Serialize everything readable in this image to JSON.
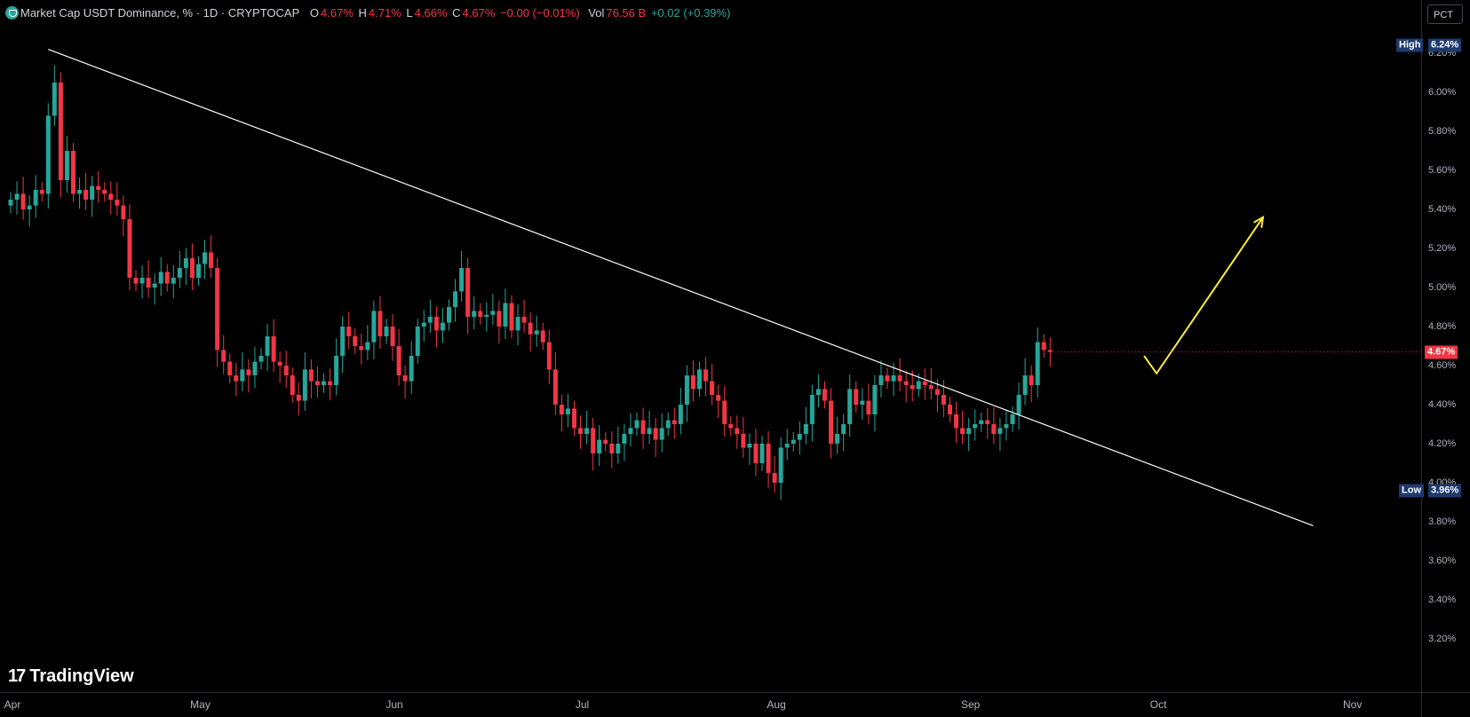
{
  "legend": {
    "title": "Market Cap USDT Dominance, % · 1D · CRYPTOCAP",
    "o_label": "O",
    "o_val": "4.67%",
    "h_label": "H",
    "h_val": "4.71%",
    "l_label": "L",
    "l_val": "4.66%",
    "c_label": "C",
    "c_val": "4.67%",
    "change": "−0.00 (−0.01%)",
    "vol_label": "Vol",
    "vol_val": "76.56 B",
    "vol_change": "+0.02 (+0.39%)"
  },
  "scale_button": "PCT",
  "brand": "TradingView",
  "high_marker": {
    "label": "High",
    "value": "6.24%"
  },
  "low_marker": {
    "label": "Low",
    "value": "3.96%"
  },
  "last_price": "4.67%",
  "colors": {
    "up": "#26a69a",
    "down": "#f23645",
    "trendline": "#ffffff",
    "arrow": "#ffeb3b",
    "badge_bg": "#1e3a6e",
    "price_badge": "#f23645"
  },
  "chart_data": {
    "type": "candlestick",
    "title": "Market Cap USDT Dominance, % · 1D · CRYPTOCAP",
    "ylim": [
      3.1,
      6.4
    ],
    "y_ticks": [
      "6.20%",
      "6.00%",
      "5.80%",
      "5.60%",
      "5.40%",
      "5.20%",
      "5.00%",
      "4.80%",
      "4.60%",
      "4.40%",
      "4.20%",
      "4.00%",
      "3.80%",
      "3.60%",
      "3.40%",
      "3.20%"
    ],
    "x_ticks": [
      {
        "label": "Apr",
        "date": "2024-04-01"
      },
      {
        "label": "May",
        "date": "2024-05-01"
      },
      {
        "label": "Jun",
        "date": "2024-06-01"
      },
      {
        "label": "Jul",
        "date": "2024-07-01"
      },
      {
        "label": "Aug",
        "date": "2024-08-01"
      },
      {
        "label": "Sep",
        "date": "2024-09-01"
      },
      {
        "label": "Oct",
        "date": "2024-10-01"
      },
      {
        "label": "Nov",
        "date": "2024-11-01"
      }
    ],
    "start_date": "2024-04-01",
    "closes": [
      5.45,
      5.48,
      5.4,
      5.42,
      5.5,
      5.48,
      5.88,
      6.05,
      5.55,
      5.7,
      5.48,
      5.5,
      5.45,
      5.52,
      5.5,
      5.48,
      5.45,
      5.42,
      5.35,
      5.05,
      5.02,
      5.05,
      5.0,
      5.02,
      5.08,
      5.02,
      5.05,
      5.1,
      5.15,
      5.05,
      5.12,
      5.18,
      5.1,
      4.68,
      4.62,
      4.55,
      4.52,
      4.58,
      4.55,
      4.62,
      4.65,
      4.75,
      4.62,
      4.6,
      4.55,
      4.45,
      4.42,
      4.58,
      4.52,
      4.5,
      4.52,
      4.5,
      4.65,
      4.8,
      4.75,
      4.7,
      4.68,
      4.72,
      4.88,
      4.75,
      4.8,
      4.7,
      4.55,
      4.52,
      4.65,
      4.8,
      4.82,
      4.85,
      4.78,
      4.82,
      4.9,
      4.98,
      5.1,
      4.85,
      4.88,
      4.85,
      4.86,
      4.88,
      4.8,
      4.92,
      4.78,
      4.85,
      4.82,
      4.76,
      4.78,
      4.72,
      4.58,
      4.4,
      4.35,
      4.38,
      4.28,
      4.25,
      4.28,
      4.15,
      4.22,
      4.2,
      4.15,
      4.2,
      4.25,
      4.28,
      4.32,
      4.25,
      4.28,
      4.22,
      4.28,
      4.32,
      4.3,
      4.4,
      4.55,
      4.48,
      4.58,
      4.52,
      4.45,
      4.42,
      4.3,
      4.28,
      4.25,
      4.18,
      4.2,
      4.1,
      4.2,
      4.05,
      4.0,
      4.18,
      4.2,
      4.22,
      4.25,
      4.3,
      4.45,
      4.48,
      4.42,
      4.2,
      4.25,
      4.3,
      4.48,
      4.4,
      4.42,
      4.35,
      4.5,
      4.55,
      4.52,
      4.55,
      4.52,
      4.5,
      4.48,
      4.52,
      4.5,
      4.48,
      4.45,
      4.4,
      4.35,
      4.28,
      4.25,
      4.28,
      4.3,
      4.32,
      4.3,
      4.25,
      4.28,
      4.3,
      4.35,
      4.45,
      4.55,
      4.5,
      4.72,
      4.68,
      4.67
    ],
    "highs_lows_note": "",
    "trendline": {
      "from": {
        "date": "2024-04-07",
        "value": 6.22
      },
      "to": {
        "date": "2024-10-26",
        "value": 3.78
      }
    },
    "projection_arrow": [
      {
        "date": "2024-09-29",
        "value": 4.65
      },
      {
        "date": "2024-10-01",
        "value": 4.56
      },
      {
        "date": "2024-10-18",
        "value": 5.36
      }
    ],
    "high": 6.24,
    "low": 3.96,
    "last": 4.67
  }
}
